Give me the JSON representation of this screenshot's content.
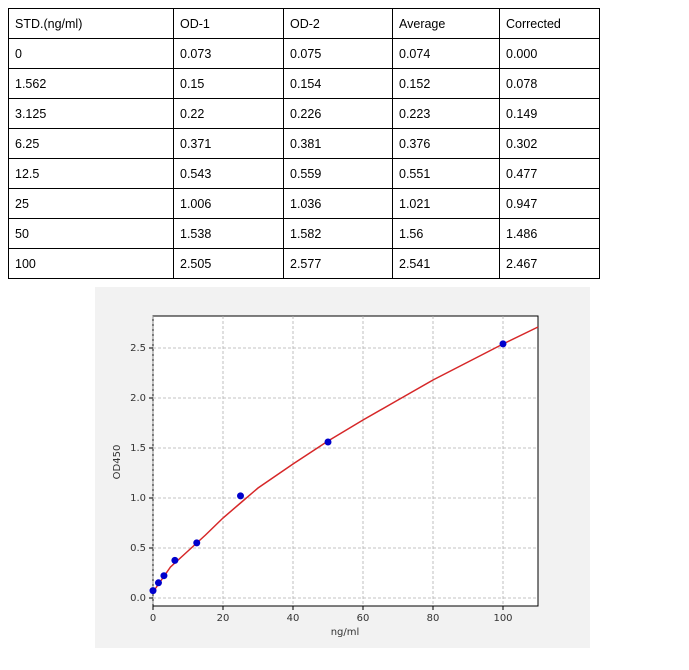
{
  "table": {
    "header": [
      "STD.(ng/ml)",
      "OD-1",
      "OD-2",
      "Average",
      "Corrected"
    ],
    "rows": [
      [
        "0",
        "0.073",
        "0.075",
        "0.074",
        "0.000"
      ],
      [
        "1.562",
        "0.15",
        "0.154",
        "0.152",
        "0.078"
      ],
      [
        "3.125",
        "0.22",
        "0.226",
        "0.223",
        "0.149"
      ],
      [
        "6.25",
        "0.371",
        "0.381",
        "0.376",
        "0.302"
      ],
      [
        "12.5",
        "0.543",
        "0.559",
        "0.551",
        "0.477"
      ],
      [
        "25",
        "1.006",
        "1.036",
        "1.021",
        "0.947"
      ],
      [
        "50",
        "1.538",
        "1.582",
        "1.56",
        "1.486"
      ],
      [
        "100",
        "2.505",
        "2.577",
        "2.541",
        "2.467"
      ]
    ]
  },
  "chart_data": {
    "type": "scatter",
    "xlabel": "ng/ml",
    "ylabel": "OD450",
    "x": [
      0,
      1.562,
      3.125,
      6.25,
      12.5,
      25,
      50,
      100
    ],
    "values": [
      0.074,
      0.152,
      0.223,
      0.376,
      0.551,
      1.021,
      1.56,
      2.541
    ],
    "color": "#0000cc",
    "curve": {
      "color": "#d62728",
      "x": [
        0,
        2,
        5,
        10,
        15,
        20,
        25,
        30,
        40,
        50,
        60,
        70,
        80,
        90,
        100,
        110
      ],
      "values": [
        0.06,
        0.16,
        0.31,
        0.47,
        0.63,
        0.8,
        0.95,
        1.1,
        1.34,
        1.57,
        1.78,
        1.98,
        2.18,
        2.36,
        2.54,
        2.71
      ]
    },
    "xlim": [
      0,
      110
    ],
    "ylim": [
      -0.08,
      2.82
    ],
    "xticks": [
      0,
      20,
      40,
      60,
      80,
      100
    ],
    "yticks": [
      {
        "value": 0,
        "label": "0.0"
      },
      0.5,
      {
        "value": 1,
        "label": "1.0"
      },
      1.5,
      {
        "value": 2,
        "label": "2.0"
      },
      2.5
    ],
    "grid": true
  }
}
